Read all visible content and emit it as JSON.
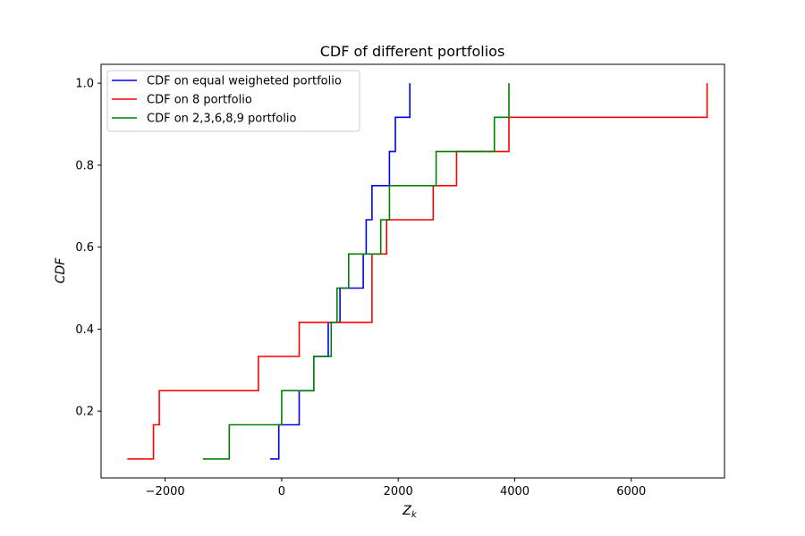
{
  "chart_data": {
    "type": "line",
    "step": "post",
    "title": "CDF of different portfolios",
    "xlabel_main": "Z",
    "xlabel_sub": "k",
    "ylabel": "CDF",
    "xlim": [
      -3100,
      7600
    ],
    "ylim": [
      0.037,
      1.046
    ],
    "xticks": [
      -2000,
      0,
      2000,
      4000,
      6000
    ],
    "xtick_labels": [
      "−2000",
      "0",
      "2000",
      "4000",
      "6000"
    ],
    "yticks": [
      0.2,
      0.4,
      0.6,
      0.8,
      1.0
    ],
    "ytick_labels": [
      "0.2",
      "0.4",
      "0.6",
      "0.8",
      "1.0"
    ],
    "grid": false,
    "legend_position": "top-left",
    "series": [
      {
        "name": "CDF on equal weigheted portfolio",
        "color": "#0000ff",
        "x": [
          -200,
          -50,
          300,
          550,
          800,
          1000,
          1400,
          1450,
          1550,
          1850,
          1950,
          2200
        ],
        "y": [
          0.0833,
          0.1667,
          0.25,
          0.3333,
          0.4167,
          0.5,
          0.5833,
          0.6667,
          0.75,
          0.8333,
          0.9167,
          1.0
        ]
      },
      {
        "name": "CDF on 8  portfolio",
        "color": "#ff0000",
        "x": [
          -2650,
          -2200,
          -2100,
          -400,
          300,
          1550,
          1800,
          2600,
          3000,
          3900,
          7300
        ],
        "y": [
          0.0833,
          0.1667,
          0.25,
          0.3333,
          0.4167,
          0.5833,
          0.6667,
          0.75,
          0.8333,
          0.9167,
          1.0
        ]
      },
      {
        "name": "CDF on 2,3,6,8,9 portfolio",
        "color": "#008000",
        "x": [
          -1350,
          -900,
          0,
          550,
          850,
          950,
          1150,
          1700,
          1850,
          2650,
          3650,
          3900
        ],
        "y": [
          0.0833,
          0.1667,
          0.25,
          0.3333,
          0.4167,
          0.5,
          0.5833,
          0.6667,
          0.75,
          0.8333,
          0.9167,
          1.0
        ]
      }
    ]
  }
}
